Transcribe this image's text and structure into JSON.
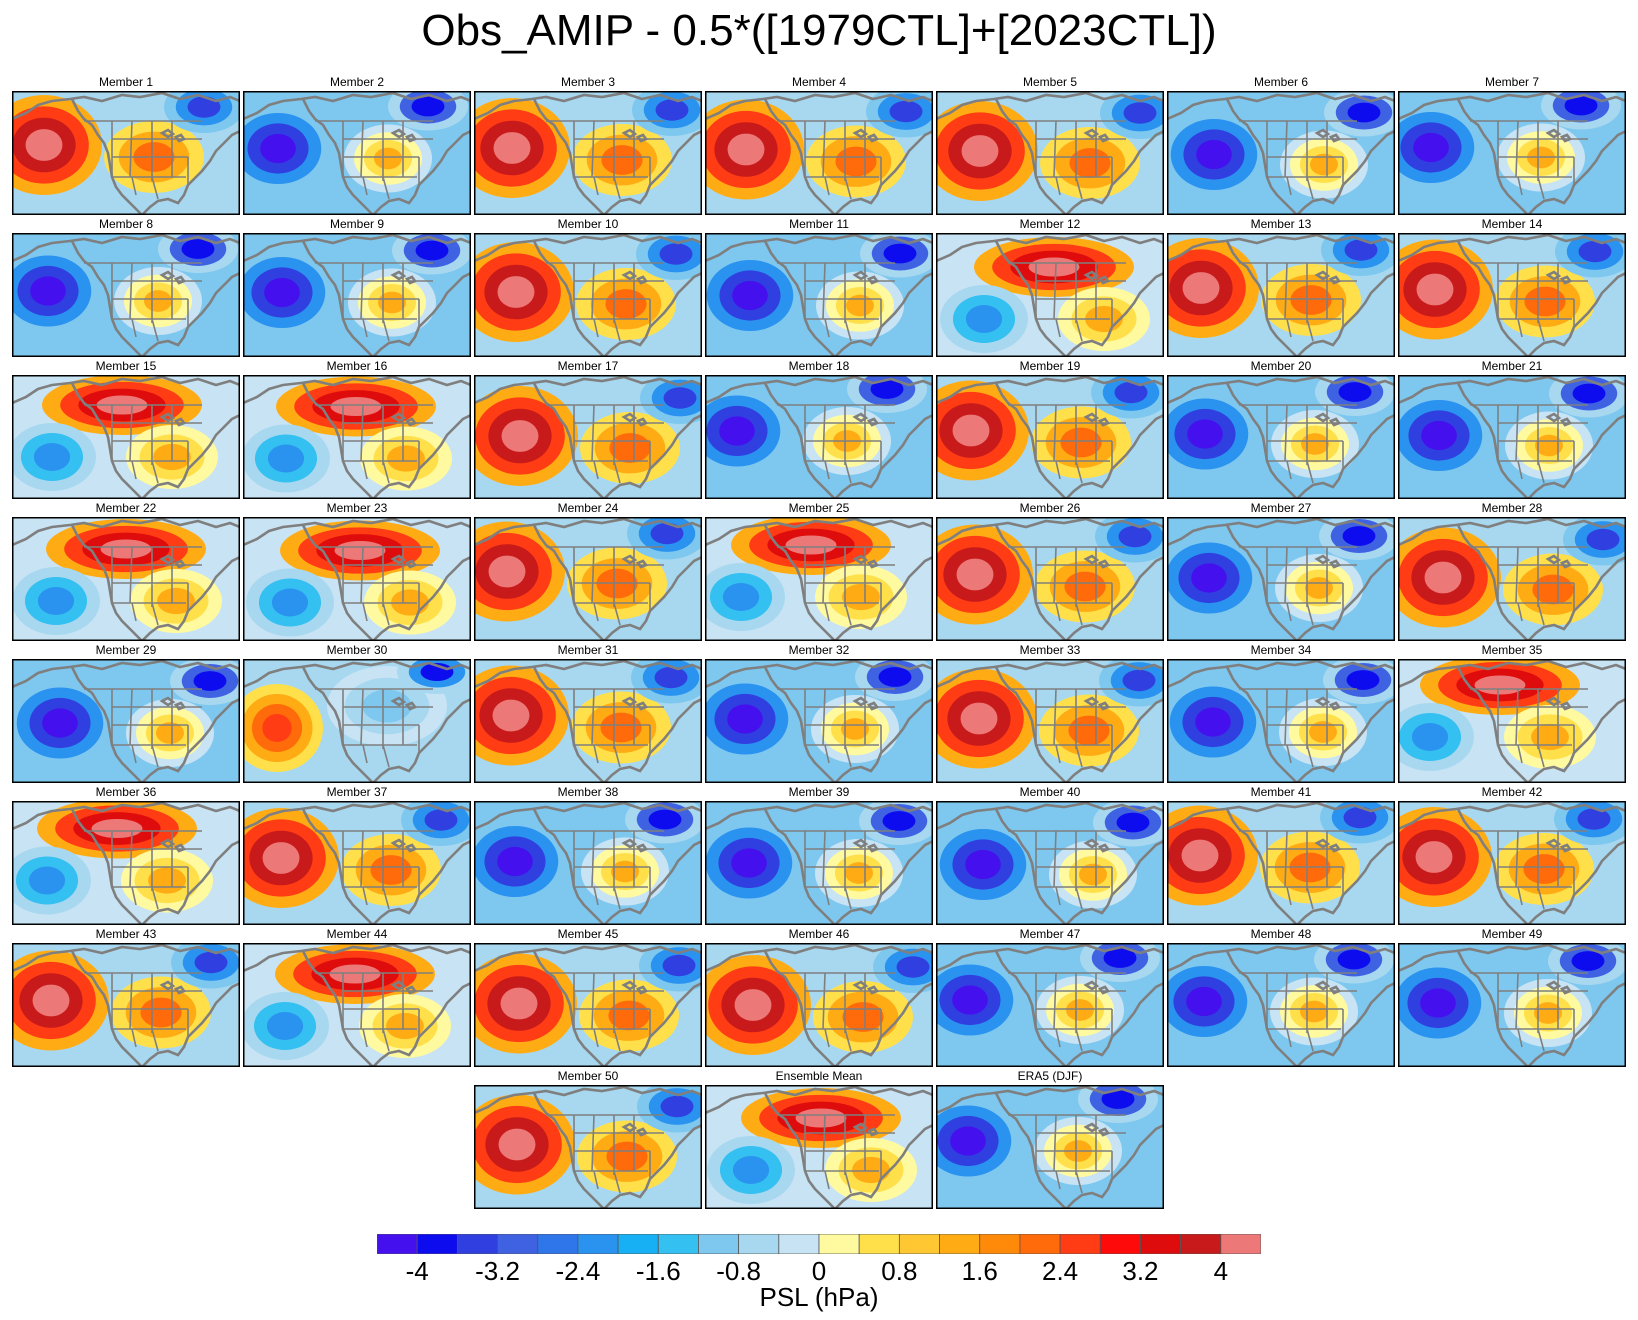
{
  "title": "Obs_AMIP - 0.5*([1979CTL]+[2023CTL])",
  "colorbar": {
    "label": "PSL (hPa)",
    "ticks": [
      "-4",
      "-3.2",
      "-2.4",
      "-1.6",
      "-0.8",
      "0",
      "0.8",
      "1.6",
      "2.4",
      "3.2",
      "4"
    ],
    "colors": [
      "#4410ee",
      "#0d0cee",
      "#3040e0",
      "#3f62e3",
      "#2e76ea",
      "#2a93ef",
      "#18b0f4",
      "#34c0f0",
      "#7ec8f0",
      "#a8d8f0",
      "#c8e4f4",
      "#fffaa0",
      "#ffe04a",
      "#ffc832",
      "#ffac14",
      "#ff8a0a",
      "#ff6a0a",
      "#ff3c14",
      "#ff0a0a",
      "#de0c0c",
      "#c81a1a",
      "#ec7878"
    ]
  },
  "panels": [
    {
      "label": "Member 1",
      "pattern": "A"
    },
    {
      "label": "Member 2",
      "pattern": "B"
    },
    {
      "label": "Member 3",
      "pattern": "A"
    },
    {
      "label": "Member 4",
      "pattern": "A"
    },
    {
      "label": "Member 5",
      "pattern": "A"
    },
    {
      "label": "Member 6",
      "pattern": "B"
    },
    {
      "label": "Member 7",
      "pattern": "B"
    },
    {
      "label": "Member 8",
      "pattern": "B"
    },
    {
      "label": "Member 9",
      "pattern": "B"
    },
    {
      "label": "Member 10",
      "pattern": "A"
    },
    {
      "label": "Member 11",
      "pattern": "B"
    },
    {
      "label": "Member 12",
      "pattern": "C"
    },
    {
      "label": "Member 13",
      "pattern": "A"
    },
    {
      "label": "Member 14",
      "pattern": "A"
    },
    {
      "label": "Member 15",
      "pattern": "C"
    },
    {
      "label": "Member 16",
      "pattern": "C"
    },
    {
      "label": "Member 17",
      "pattern": "A"
    },
    {
      "label": "Member 18",
      "pattern": "B"
    },
    {
      "label": "Member 19",
      "pattern": "A"
    },
    {
      "label": "Member 20",
      "pattern": "B"
    },
    {
      "label": "Member 21",
      "pattern": "B"
    },
    {
      "label": "Member 22",
      "pattern": "C"
    },
    {
      "label": "Member 23",
      "pattern": "C"
    },
    {
      "label": "Member 24",
      "pattern": "A"
    },
    {
      "label": "Member 25",
      "pattern": "C"
    },
    {
      "label": "Member 26",
      "pattern": "A"
    },
    {
      "label": "Member 27",
      "pattern": "B"
    },
    {
      "label": "Member 28",
      "pattern": "A"
    },
    {
      "label": "Member 29",
      "pattern": "B"
    },
    {
      "label": "Member 30",
      "pattern": "D"
    },
    {
      "label": "Member 31",
      "pattern": "A"
    },
    {
      "label": "Member 32",
      "pattern": "B"
    },
    {
      "label": "Member 33",
      "pattern": "A"
    },
    {
      "label": "Member 34",
      "pattern": "B"
    },
    {
      "label": "Member 35",
      "pattern": "C"
    },
    {
      "label": "Member 36",
      "pattern": "C"
    },
    {
      "label": "Member 37",
      "pattern": "A"
    },
    {
      "label": "Member 38",
      "pattern": "B"
    },
    {
      "label": "Member 39",
      "pattern": "B"
    },
    {
      "label": "Member 40",
      "pattern": "B"
    },
    {
      "label": "Member 41",
      "pattern": "A"
    },
    {
      "label": "Member 42",
      "pattern": "A"
    },
    {
      "label": "Member 43",
      "pattern": "A"
    },
    {
      "label": "Member 44",
      "pattern": "C"
    },
    {
      "label": "Member 45",
      "pattern": "A"
    },
    {
      "label": "Member 46",
      "pattern": "A"
    },
    {
      "label": "Member 47",
      "pattern": "B"
    },
    {
      "label": "Member 48",
      "pattern": "B"
    },
    {
      "label": "Member 49",
      "pattern": "B"
    },
    {
      "label": "Member 50",
      "pattern": "A"
    },
    {
      "label": "Ensemble Mean",
      "pattern": "C"
    },
    {
      "label": "ERA5 (DJF)",
      "pattern": "B"
    }
  ]
}
